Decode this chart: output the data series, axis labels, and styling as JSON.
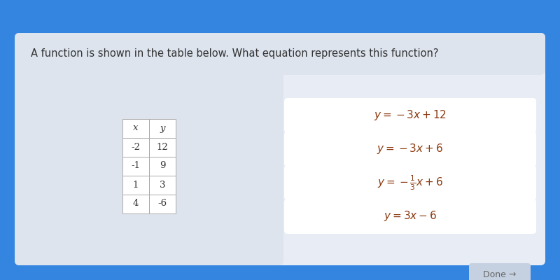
{
  "bg_color": "#3385e0",
  "card_color": "#e8edf5",
  "card_left_color": "#dde4ee",
  "question": "A function is shown in the table below. What equation represents this function?",
  "question_fontsize": 10.5,
  "question_color": "#333333",
  "table_headers": [
    "x",
    "y"
  ],
  "table_data": [
    [
      "-2",
      "12"
    ],
    [
      "-1",
      "9"
    ],
    [
      "1",
      "3"
    ],
    [
      "4",
      "-6"
    ]
  ],
  "answer_options": [
    "$y = -3x + 12$",
    "$y = -3x + 6$",
    "$y = -\\frac{1}{3}x + 6$",
    "$y = 3x - 6$"
  ],
  "option_box_color": "#ffffff",
  "option_text_color": "#8b3a10",
  "done_button_color": "#c5d0e0",
  "done_text": "Done →",
  "done_text_color": "#666666"
}
